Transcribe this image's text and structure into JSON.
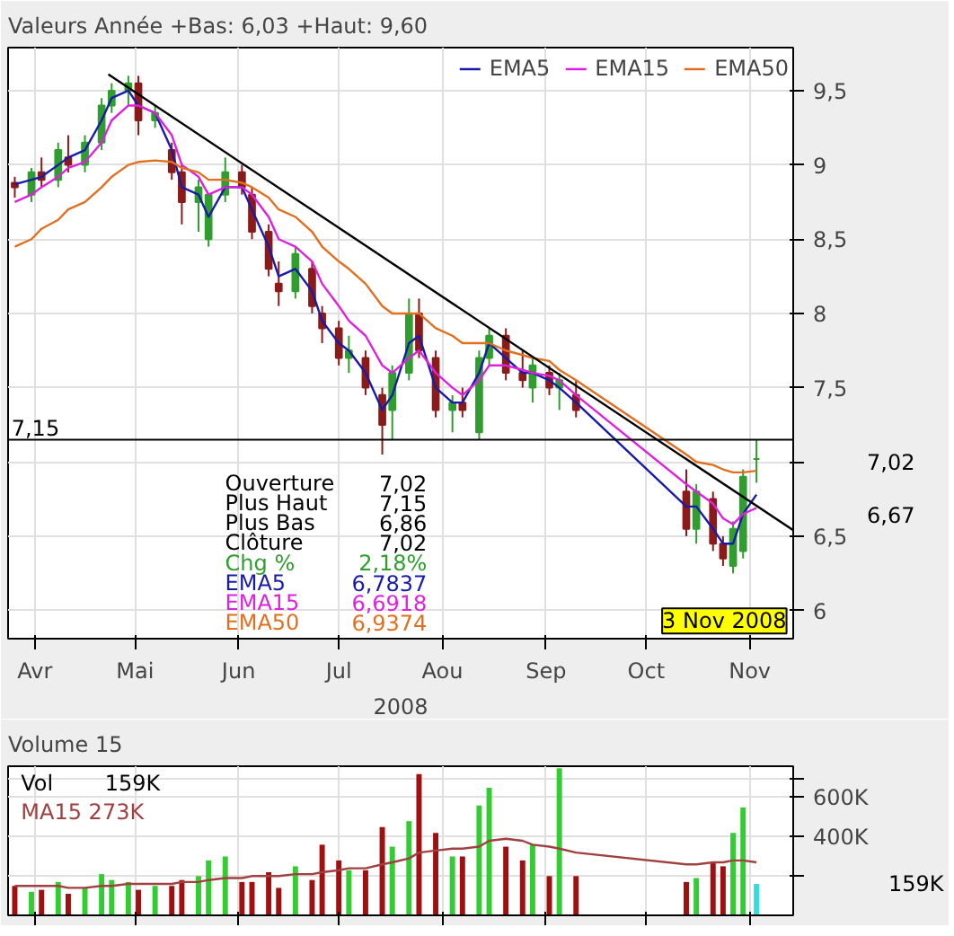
{
  "chart_data": [
    {
      "type": "candlestick",
      "title": "Valeurs",
      "subtitle": "Année +Bas: 6,03 +Haut: 9,60",
      "xlabel": "2008",
      "x": [
        "2008-03-26",
        "2008-03-31",
        "2008-04-03",
        "2008-04-08",
        "2008-04-11",
        "2008-04-16",
        "2008-04-21",
        "2008-04-24",
        "2008-04-29",
        "2008-05-02",
        "2008-05-07",
        "2008-05-12",
        "2008-05-15",
        "2008-05-20",
        "2008-05-23",
        "2008-05-28",
        "2008-06-02",
        "2008-06-05",
        "2008-06-10",
        "2008-06-13",
        "2008-06-18",
        "2008-06-23",
        "2008-06-26",
        "2008-07-01",
        "2008-07-04",
        "2008-07-09",
        "2008-07-14",
        "2008-07-17",
        "2008-07-22",
        "2008-07-25",
        "2008-07-30",
        "2008-08-04",
        "2008-08-07",
        "2008-08-12",
        "2008-08-15",
        "2008-08-20",
        "2008-08-25",
        "2008-08-28",
        "2008-09-02",
        "2008-09-05",
        "2008-09-10",
        "2008-10-13",
        "2008-10-16",
        "2008-10-21",
        "2008-10-24",
        "2008-10-27",
        "2008-10-30",
        "2008-11-03"
      ],
      "ohlc": [
        [
          8.88,
          8.92,
          8.78,
          8.85
        ],
        [
          8.8,
          8.98,
          8.75,
          8.95
        ],
        [
          8.95,
          9.05,
          8.85,
          8.9
        ],
        [
          8.9,
          9.15,
          8.85,
          9.1
        ],
        [
          9.05,
          9.2,
          8.95,
          9.0
        ],
        [
          9.0,
          9.2,
          8.95,
          9.15
        ],
        [
          9.15,
          9.45,
          9.1,
          9.4
        ],
        [
          9.4,
          9.55,
          9.35,
          9.5
        ],
        [
          9.5,
          9.6,
          9.4,
          9.55
        ],
        [
          9.55,
          9.6,
          9.2,
          9.3
        ],
        [
          9.3,
          9.4,
          9.25,
          9.35
        ],
        [
          9.1,
          9.15,
          8.9,
          8.95
        ],
        [
          8.95,
          9.0,
          8.6,
          8.75
        ],
        [
          8.75,
          8.9,
          8.55,
          8.85
        ],
        [
          8.5,
          8.8,
          8.45,
          8.8
        ],
        [
          8.8,
          9.05,
          8.75,
          8.95
        ],
        [
          8.95,
          9.0,
          8.8,
          8.85
        ],
        [
          8.8,
          8.85,
          8.5,
          8.55
        ],
        [
          8.55,
          8.6,
          8.25,
          8.3
        ],
        [
          8.2,
          8.35,
          8.05,
          8.15
        ],
        [
          8.15,
          8.45,
          8.1,
          8.4
        ],
        [
          8.3,
          8.35,
          8.0,
          8.05
        ],
        [
          8.0,
          8.05,
          7.8,
          7.9
        ],
        [
          7.9,
          7.95,
          7.65,
          7.7
        ],
        [
          7.7,
          7.85,
          7.6,
          7.75
        ],
        [
          7.7,
          7.75,
          7.45,
          7.5
        ],
        [
          7.45,
          7.5,
          7.05,
          7.25
        ],
        [
          7.35,
          7.65,
          7.15,
          7.6
        ],
        [
          7.6,
          8.1,
          7.55,
          8.0
        ],
        [
          8.0,
          8.1,
          7.7,
          7.75
        ],
        [
          7.7,
          7.75,
          7.3,
          7.35
        ],
        [
          7.35,
          7.45,
          7.2,
          7.4
        ],
        [
          7.4,
          7.5,
          7.3,
          7.35
        ],
        [
          7.2,
          7.75,
          7.15,
          7.7
        ],
        [
          7.7,
          7.9,
          7.65,
          7.85
        ],
        [
          7.85,
          7.9,
          7.55,
          7.6
        ],
        [
          7.6,
          7.75,
          7.5,
          7.55
        ],
        [
          7.5,
          7.7,
          7.4,
          7.65
        ],
        [
          7.6,
          7.65,
          7.45,
          7.5
        ],
        [
          7.5,
          7.6,
          7.35,
          7.55
        ],
        [
          7.45,
          7.55,
          7.3,
          7.35
        ],
        [
          6.8,
          6.95,
          6.5,
          6.55
        ],
        [
          6.55,
          6.85,
          6.45,
          6.8
        ],
        [
          6.75,
          6.8,
          6.4,
          6.45
        ],
        [
          6.45,
          6.5,
          6.3,
          6.35
        ],
        [
          6.3,
          6.6,
          6.25,
          6.55
        ],
        [
          6.4,
          6.95,
          6.35,
          6.9
        ],
        [
          7.02,
          7.15,
          6.86,
          7.02
        ]
      ],
      "colors": [
        "#8b1a1a",
        "#2f9e2f",
        "#8b1a1a",
        "#2f9e2f",
        "#8b1a1a",
        "#2f9e2f",
        "#2f9e2f",
        "#2f9e2f",
        "#2f9e2f",
        "#8b1a1a",
        "#2f9e2f",
        "#8b1a1a",
        "#8b1a1a",
        "#2f9e2f",
        "#2f9e2f",
        "#2f9e2f",
        "#8b1a1a",
        "#8b1a1a",
        "#8b1a1a",
        "#8b1a1a",
        "#2f9e2f",
        "#8b1a1a",
        "#8b1a1a",
        "#8b1a1a",
        "#2f9e2f",
        "#8b1a1a",
        "#8b1a1a",
        "#2f9e2f",
        "#2f9e2f",
        "#8b1a1a",
        "#8b1a1a",
        "#2f9e2f",
        "#8b1a1a",
        "#2f9e2f",
        "#2f9e2f",
        "#8b1a1a",
        "#8b1a1a",
        "#2f9e2f",
        "#8b1a1a",
        "#2f9e2f",
        "#8b1a1a",
        "#8b1a1a",
        "#2f9e2f",
        "#8b1a1a",
        "#8b1a1a",
        "#2f9e2f",
        "#2f9e2f",
        "#2f9e2f"
      ],
      "series": [
        {
          "type": "line",
          "name": "EMA5",
          "color": "#1a1aa8",
          "values": [
            8.87,
            8.9,
            8.92,
            9.0,
            9.05,
            9.1,
            9.3,
            9.45,
            9.5,
            9.4,
            9.35,
            9.1,
            8.85,
            8.8,
            8.65,
            8.85,
            8.85,
            8.7,
            8.45,
            8.25,
            8.3,
            8.15,
            7.95,
            7.8,
            7.75,
            7.6,
            7.35,
            7.45,
            7.8,
            7.85,
            7.5,
            7.4,
            7.4,
            7.6,
            7.8,
            7.7,
            7.6,
            7.6,
            7.55,
            7.5,
            7.4,
            6.7,
            6.7,
            6.55,
            6.45,
            6.45,
            6.65,
            6.78
          ]
        },
        {
          "type": "line",
          "name": "EMA15",
          "color": "#dd22dd",
          "values": [
            8.75,
            8.8,
            8.85,
            8.92,
            8.98,
            9.02,
            9.15,
            9.3,
            9.4,
            9.4,
            9.35,
            9.2,
            9.0,
            8.92,
            8.8,
            8.85,
            8.85,
            8.8,
            8.65,
            8.5,
            8.45,
            8.35,
            8.2,
            8.05,
            7.95,
            7.85,
            7.65,
            7.6,
            7.7,
            7.75,
            7.6,
            7.5,
            7.45,
            7.55,
            7.65,
            7.65,
            7.62,
            7.6,
            7.58,
            7.55,
            7.45,
            6.85,
            6.8,
            6.72,
            6.62,
            6.58,
            6.65,
            6.69
          ]
        },
        {
          "type": "line",
          "name": "EMA50",
          "color": "#e07020",
          "values": [
            8.45,
            8.5,
            8.57,
            8.63,
            8.7,
            8.75,
            8.85,
            8.92,
            9.0,
            9.02,
            9.03,
            9.02,
            8.98,
            8.95,
            8.9,
            8.9,
            8.88,
            8.85,
            8.78,
            8.7,
            8.65,
            8.55,
            8.45,
            8.35,
            8.3,
            8.2,
            8.05,
            8.0,
            8.0,
            8.0,
            7.9,
            7.85,
            7.8,
            7.8,
            7.8,
            7.75,
            7.72,
            7.7,
            7.68,
            7.62,
            7.55,
            7.05,
            7.0,
            6.98,
            6.95,
            6.93,
            6.93,
            6.94
          ]
        },
        {
          "type": "line",
          "color": "#000000",
          "x": [
            "2008-04-23",
            "2008-11-14"
          ],
          "values": [
            9.61,
            6.54
          ]
        }
      ],
      "xlim": [
        "2008-03-24",
        "2008-11-14"
      ],
      "xticks": [
        {
          "value": "2008-04-01",
          "label": "Avr"
        },
        {
          "value": "2008-05-01",
          "label": "Mai"
        },
        {
          "value": "2008-06-01",
          "label": "Jun"
        },
        {
          "value": "2008-07-01",
          "label": "Jul"
        },
        {
          "value": "2008-08-01",
          "label": "Aou"
        },
        {
          "value": "2008-09-01",
          "label": "Sep"
        },
        {
          "value": "2008-10-01",
          "label": "Oct"
        },
        {
          "value": "2008-11-01",
          "label": "Nov"
        }
      ],
      "ylim": [
        5.81,
        9.79
      ],
      "yticks": [
        6,
        {
          "value": 6.5,
          "label": "6,5"
        },
        {
          "value": 7,
          "label": null
        },
        {
          "value": 7.5,
          "label": "7,5"
        },
        8,
        {
          "value": 8.5,
          "label": "8,5"
        },
        9,
        {
          "value": 9.5,
          "label": "9,5"
        }
      ],
      "ref_lines": [
        {
          "axis": "y",
          "value": 7.15,
          "label": "7,15",
          "color": "#000000"
        }
      ],
      "annotations": [
        "Ouverture",
        "7,02",
        "Plus Haut",
        "7,15",
        "Plus Bas",
        "6,86",
        "Clôture",
        "7,02",
        "Chg %",
        "2,18%",
        "EMA5",
        "6,7837",
        "EMA15",
        "6,6918",
        "EMA50",
        "6,9374",
        "7,02",
        "6,67",
        "3 Nov 2008"
      ],
      "legend": "top right",
      "grid": true
    },
    {
      "type": "bar",
      "title": "Volume 15",
      "x": [
        "2008-03-26",
        "2008-03-31",
        "2008-04-03",
        "2008-04-08",
        "2008-04-11",
        "2008-04-16",
        "2008-04-21",
        "2008-04-24",
        "2008-04-29",
        "2008-05-02",
        "2008-05-07",
        "2008-05-12",
        "2008-05-15",
        "2008-05-20",
        "2008-05-23",
        "2008-05-28",
        "2008-06-02",
        "2008-06-05",
        "2008-06-10",
        "2008-06-13",
        "2008-06-18",
        "2008-06-23",
        "2008-06-26",
        "2008-07-01",
        "2008-07-04",
        "2008-07-09",
        "2008-07-14",
        "2008-07-17",
        "2008-07-22",
        "2008-07-25",
        "2008-07-30",
        "2008-08-04",
        "2008-08-07",
        "2008-08-12",
        "2008-08-15",
        "2008-08-20",
        "2008-08-25",
        "2008-08-28",
        "2008-09-02",
        "2008-09-05",
        "2008-09-10",
        "2008-10-13",
        "2008-10-16",
        "2008-10-21",
        "2008-10-24",
        "2008-10-27",
        "2008-10-30",
        "2008-11-03"
      ],
      "values": [
        150,
        120,
        130,
        170,
        110,
        140,
        210,
        180,
        170,
        130,
        150,
        150,
        180,
        200,
        280,
        300,
        170,
        170,
        220,
        140,
        250,
        180,
        360,
        280,
        230,
        230,
        450,
        350,
        480,
        720,
        420,
        300,
        300,
        560,
        650,
        350,
        280,
        360,
        200,
        750,
        200,
        170,
        190,
        270,
        250,
        420,
        550,
        160
      ],
      "colors": [
        "#a01010",
        "#33cc33",
        "#a01010",
        "#33cc33",
        "#a01010",
        "#33cc33",
        "#33cc33",
        "#33cc33",
        "#33cc33",
        "#a01010",
        "#33cc33",
        "#a01010",
        "#a01010",
        "#33cc33",
        "#33cc33",
        "#33cc33",
        "#a01010",
        "#a01010",
        "#a01010",
        "#a01010",
        "#33cc33",
        "#a01010",
        "#a01010",
        "#a01010",
        "#33cc33",
        "#a01010",
        "#a01010",
        "#33cc33",
        "#33cc33",
        "#a01010",
        "#a01010",
        "#33cc33",
        "#a01010",
        "#33cc33",
        "#33cc33",
        "#a01010",
        "#a01010",
        "#33cc33",
        "#a01010",
        "#33cc33",
        "#a01010",
        "#a01010",
        "#33cc33",
        "#a01010",
        "#a01010",
        "#33cc33",
        "#33cc33",
        "#33dddd"
      ],
      "series": [
        {
          "type": "line",
          "color": "#a04040",
          "values": [
            150,
            150,
            150,
            150,
            140,
            140,
            150,
            150,
            160,
            160,
            160,
            160,
            170,
            170,
            180,
            190,
            190,
            200,
            200,
            200,
            210,
            210,
            220,
            230,
            240,
            240,
            260,
            270,
            290,
            320,
            330,
            340,
            340,
            350,
            380,
            390,
            380,
            360,
            350,
            340,
            320,
            260,
            260,
            270,
            270,
            280,
            280,
            270
          ]
        }
      ],
      "xlim": [
        "2008-03-24",
        "2008-11-14"
      ],
      "xticks": [
        {
          "value": "2008-04-01",
          "label": null
        },
        {
          "value": "2008-05-01",
          "label": null
        },
        {
          "value": "2008-06-01",
          "label": null
        },
        {
          "value": "2008-07-01",
          "label": null
        },
        {
          "value": "2008-08-01",
          "label": null
        },
        {
          "value": "2008-09-01",
          "label": null
        },
        {
          "value": "2008-10-01",
          "label": null
        },
        {
          "value": "2008-11-01",
          "label": null
        }
      ],
      "ylim": [
        0,
        760
      ],
      "yticks": [
        {
          "value": 200,
          "label": null
        },
        {
          "value": 400,
          "label": "400K"
        },
        {
          "value": 600,
          "label": "600K"
        },
        {
          "value": 700,
          "label": null
        }
      ],
      "annotations": [
        "Vol",
        "159K",
        "MA15 273K",
        "159K"
      ],
      "tick_labels": "y",
      "grid": true
    }
  ]
}
